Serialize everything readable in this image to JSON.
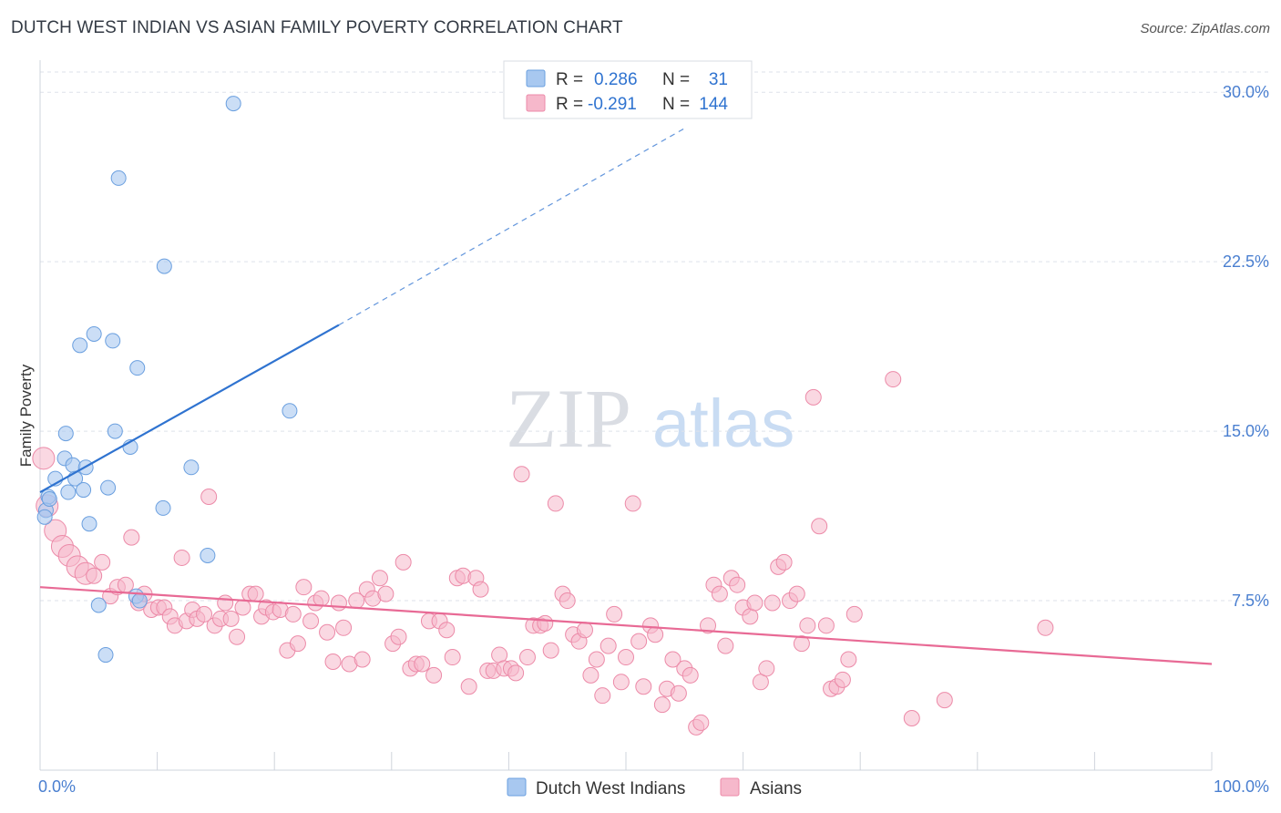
{
  "header": {
    "title": "DUTCH WEST INDIAN VS ASIAN FAMILY POVERTY CORRELATION CHART",
    "source": "Source: ZipAtlas.com"
  },
  "watermark": {
    "zip": "ZIP",
    "atlas": "atlas"
  },
  "colors": {
    "blue_fill": "#a8c8f0",
    "blue_stroke": "#6a9fdf",
    "blue_line": "#2f73d0",
    "pink_fill": "#f6b8cb",
    "pink_stroke": "#ec8aa8",
    "pink_line": "#e86a95",
    "tick_text": "#4a7fd0",
    "grid": "#dde2ea"
  },
  "legend_top": {
    "rows": [
      {
        "r_label": "R =",
        "r_value": "0.286",
        "n_label": "N =",
        "n_value": "31"
      },
      {
        "r_label": "R =",
        "r_value": "-0.291",
        "n_label": "N =",
        "n_value": "144"
      }
    ]
  },
  "legend_bottom": {
    "items": [
      "Dutch West Indians",
      "Asians"
    ]
  },
  "chart_data": {
    "type": "scatter",
    "title": "DUTCH WEST INDIAN VS ASIAN FAMILY POVERTY CORRELATION CHART",
    "ylabel": "Family Poverty",
    "xlabel": "",
    "xlim": [
      0,
      100
    ],
    "ylim": [
      0,
      31.5
    ],
    "x_tick_labels": [
      "0.0%",
      "100.0%"
    ],
    "y_ticks": [
      7.5,
      15.0,
      22.5,
      30.0
    ],
    "y_tick_labels": [
      "7.5%",
      "15.0%",
      "22.5%",
      "30.0%"
    ],
    "grid": true,
    "legend_position": "top-center",
    "series": [
      {
        "name": "Dutch West Indians",
        "r": 0.286,
        "n": 31,
        "trend": {
          "x0": 0,
          "y0": 12.3,
          "x1": 25.5,
          "y1": 19.7,
          "dash_to_x": 55,
          "dash_to_y": 28.4
        },
        "points": [
          [
            16.5,
            29.5
          ],
          [
            6.7,
            26.2
          ],
          [
            10.6,
            22.3
          ],
          [
            4.6,
            19.3
          ],
          [
            3.4,
            18.8
          ],
          [
            6.2,
            19.0
          ],
          [
            8.3,
            17.8
          ],
          [
            21.3,
            15.9
          ],
          [
            6.4,
            15.0
          ],
          [
            2.2,
            14.9
          ],
          [
            7.7,
            14.3
          ],
          [
            2.1,
            13.8
          ],
          [
            2.8,
            13.5
          ],
          [
            3.9,
            13.4
          ],
          [
            12.9,
            13.4
          ],
          [
            1.3,
            12.9
          ],
          [
            3.0,
            12.9
          ],
          [
            2.4,
            12.3
          ],
          [
            3.7,
            12.4
          ],
          [
            5.8,
            12.5
          ],
          [
            0.7,
            12.1
          ],
          [
            0.5,
            11.5
          ],
          [
            10.5,
            11.6
          ],
          [
            0.4,
            11.2
          ],
          [
            4.2,
            10.9
          ],
          [
            14.3,
            9.5
          ],
          [
            8.2,
            7.7
          ],
          [
            8.5,
            7.5
          ],
          [
            5.0,
            7.3
          ],
          [
            5.6,
            5.1
          ],
          [
            0.8,
            12.0
          ]
        ]
      },
      {
        "name": "Asians",
        "r": -0.291,
        "n": 144,
        "trend": {
          "x0": 0,
          "y0": 8.1,
          "x1": 100,
          "y1": 4.7
        },
        "points": [
          [
            0.3,
            13.8
          ],
          [
            0.6,
            11.7
          ],
          [
            1.3,
            10.6
          ],
          [
            1.9,
            9.9
          ],
          [
            2.5,
            9.5
          ],
          [
            3.2,
            9.0
          ],
          [
            3.9,
            8.7
          ],
          [
            4.6,
            8.6
          ],
          [
            5.3,
            9.2
          ],
          [
            6.0,
            7.7
          ],
          [
            6.6,
            8.1
          ],
          [
            7.3,
            8.2
          ],
          [
            7.8,
            10.3
          ],
          [
            8.4,
            7.4
          ],
          [
            8.9,
            7.8
          ],
          [
            9.5,
            7.1
          ],
          [
            10.1,
            7.2
          ],
          [
            10.6,
            7.2
          ],
          [
            11.1,
            6.8
          ],
          [
            11.5,
            6.4
          ],
          [
            12.1,
            9.4
          ],
          [
            12.5,
            6.6
          ],
          [
            13.0,
            7.1
          ],
          [
            13.4,
            6.7
          ],
          [
            14.0,
            6.9
          ],
          [
            14.4,
            12.1
          ],
          [
            14.9,
            6.4
          ],
          [
            15.4,
            6.7
          ],
          [
            15.8,
            7.4
          ],
          [
            16.3,
            6.7
          ],
          [
            16.8,
            5.9
          ],
          [
            17.3,
            7.2
          ],
          [
            17.9,
            7.8
          ],
          [
            18.4,
            7.8
          ],
          [
            18.9,
            6.8
          ],
          [
            19.3,
            7.2
          ],
          [
            19.9,
            7.0
          ],
          [
            20.5,
            7.1
          ],
          [
            21.1,
            5.3
          ],
          [
            21.6,
            6.9
          ],
          [
            22.0,
            5.6
          ],
          [
            22.5,
            8.1
          ],
          [
            23.1,
            6.6
          ],
          [
            23.5,
            7.4
          ],
          [
            24.0,
            7.6
          ],
          [
            24.5,
            6.1
          ],
          [
            25.0,
            4.8
          ],
          [
            25.5,
            7.4
          ],
          [
            25.9,
            6.3
          ],
          [
            26.4,
            4.7
          ],
          [
            27.0,
            7.5
          ],
          [
            27.5,
            4.9
          ],
          [
            27.9,
            8.0
          ],
          [
            28.4,
            7.6
          ],
          [
            29.0,
            8.5
          ],
          [
            29.5,
            7.8
          ],
          [
            30.1,
            5.6
          ],
          [
            30.6,
            5.9
          ],
          [
            31.0,
            9.2
          ],
          [
            31.6,
            4.5
          ],
          [
            32.1,
            4.7
          ],
          [
            32.6,
            4.7
          ],
          [
            33.2,
            6.6
          ],
          [
            33.6,
            4.2
          ],
          [
            34.1,
            6.6
          ],
          [
            34.7,
            6.2
          ],
          [
            35.2,
            5.0
          ],
          [
            35.6,
            8.5
          ],
          [
            36.1,
            8.6
          ],
          [
            36.6,
            3.7
          ],
          [
            37.2,
            8.5
          ],
          [
            37.6,
            8.0
          ],
          [
            38.2,
            4.4
          ],
          [
            38.7,
            4.4
          ],
          [
            39.2,
            5.1
          ],
          [
            39.6,
            4.5
          ],
          [
            40.2,
            4.5
          ],
          [
            40.6,
            4.3
          ],
          [
            41.1,
            13.1
          ],
          [
            41.6,
            5.0
          ],
          [
            42.1,
            6.4
          ],
          [
            42.7,
            6.4
          ],
          [
            43.1,
            6.5
          ],
          [
            43.6,
            5.3
          ],
          [
            44.0,
            11.8
          ],
          [
            44.6,
            7.8
          ],
          [
            45.0,
            7.5
          ],
          [
            45.5,
            6.0
          ],
          [
            46.0,
            5.7
          ],
          [
            46.5,
            6.2
          ],
          [
            47.0,
            4.2
          ],
          [
            47.5,
            4.9
          ],
          [
            48.0,
            3.3
          ],
          [
            48.5,
            5.5
          ],
          [
            49.0,
            6.9
          ],
          [
            49.6,
            3.9
          ],
          [
            50.0,
            5.0
          ],
          [
            50.6,
            11.8
          ],
          [
            51.1,
            5.7
          ],
          [
            51.5,
            3.7
          ],
          [
            52.1,
            6.4
          ],
          [
            52.5,
            6.0
          ],
          [
            53.1,
            2.9
          ],
          [
            53.5,
            3.6
          ],
          [
            54.0,
            4.9
          ],
          [
            54.5,
            3.4
          ],
          [
            55.0,
            4.5
          ],
          [
            55.5,
            4.2
          ],
          [
            56.0,
            1.9
          ],
          [
            56.4,
            2.1
          ],
          [
            57.0,
            6.4
          ],
          [
            57.5,
            8.2
          ],
          [
            58.0,
            7.8
          ],
          [
            58.5,
            5.5
          ],
          [
            59.0,
            8.5
          ],
          [
            59.5,
            8.2
          ],
          [
            60.0,
            7.2
          ],
          [
            60.6,
            6.8
          ],
          [
            61.0,
            7.4
          ],
          [
            61.5,
            3.9
          ],
          [
            62.0,
            4.5
          ],
          [
            62.5,
            7.4
          ],
          [
            63.0,
            9.0
          ],
          [
            63.5,
            9.2
          ],
          [
            64.0,
            7.5
          ],
          [
            64.6,
            7.8
          ],
          [
            65.0,
            5.6
          ],
          [
            65.5,
            6.4
          ],
          [
            66.0,
            16.5
          ],
          [
            66.5,
            10.8
          ],
          [
            67.1,
            6.4
          ],
          [
            67.5,
            3.6
          ],
          [
            68.0,
            3.7
          ],
          [
            68.5,
            4.0
          ],
          [
            69.0,
            4.9
          ],
          [
            69.5,
            6.9
          ],
          [
            72.8,
            17.3
          ],
          [
            74.4,
            2.3
          ],
          [
            77.2,
            3.1
          ],
          [
            85.8,
            6.3
          ]
        ]
      }
    ]
  }
}
